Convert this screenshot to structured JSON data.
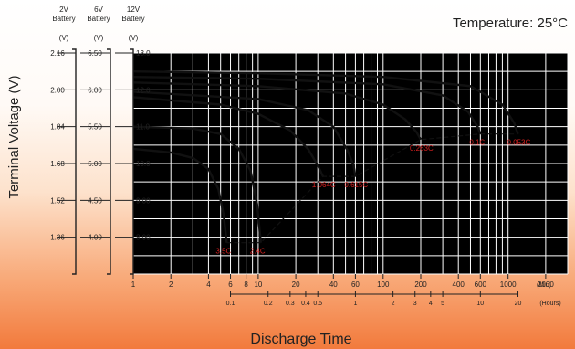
{
  "temperature_label": "Temperature: 25°C",
  "y_axis_title": "Terminal Voltage (V)",
  "x_axis_title": "Discharge Time",
  "battery_headers": [
    {
      "line1": "2V",
      "line2": "Battery",
      "unit": "(V)"
    },
    {
      "line1": "6V",
      "line2": "Battery",
      "unit": "(V)"
    },
    {
      "line1": "12V",
      "line2": "Battery",
      "unit": "(V)"
    }
  ],
  "y_ticks_2v": [
    "2.16",
    "2.00",
    "1.84",
    "1.68",
    "1.52",
    "1.36"
  ],
  "y_ticks_6v": [
    "6.50",
    "6.00",
    "5.50",
    "5.00",
    "4.50",
    "4.00"
  ],
  "colors": {
    "curve": "#111111",
    "label": "#d42020",
    "grid": "#ffffff",
    "plot_bg": "#000000"
  },
  "chart_data": {
    "type": "line",
    "x_scale": "log",
    "x_unit": "(Min)",
    "x_unit_hours": "(Hours)",
    "xlim_min": [
      1,
      3000
    ],
    "ylim": [
      7.0,
      13.0
    ],
    "y_ticks": [
      {
        "value": 13.0,
        "label": "13.0"
      },
      {
        "value": 12.0,
        "label": "12.0"
      },
      {
        "value": 11.0,
        "label": "11.0"
      },
      {
        "value": 10.0,
        "label": "10.0"
      },
      {
        "value": 9.0,
        "label": "9.00"
      },
      {
        "value": 8.0,
        "label": "8.00"
      }
    ],
    "x_ticks_min": [
      {
        "value": 1,
        "label": "1"
      },
      {
        "value": 2,
        "label": "2"
      },
      {
        "value": 4,
        "label": "4"
      },
      {
        "value": 6,
        "label": "6"
      },
      {
        "value": 8,
        "label": "8"
      },
      {
        "value": 10,
        "label": "10"
      },
      {
        "value": 20,
        "label": "20"
      },
      {
        "value": 40,
        "label": "40"
      },
      {
        "value": 60,
        "label": "60"
      },
      {
        "value": 100,
        "label": "100"
      },
      {
        "value": 200,
        "label": "200"
      },
      {
        "value": 400,
        "label": "400"
      },
      {
        "value": 600,
        "label": "600"
      },
      {
        "value": 1000,
        "label": "1000"
      },
      {
        "value": 2000,
        "label": "2000"
      }
    ],
    "x_ticks_hours": [
      {
        "value": 0.1,
        "label": "0.1"
      },
      {
        "value": 0.2,
        "label": "0.2"
      },
      {
        "value": 0.3,
        "label": "0.3"
      },
      {
        "value": 0.4,
        "label": "0.4"
      },
      {
        "value": 0.5,
        "label": "0.5"
      },
      {
        "value": 1,
        "label": "1"
      },
      {
        "value": 2,
        "label": "2"
      },
      {
        "value": 3,
        "label": "3"
      },
      {
        "value": 4,
        "label": "4"
      },
      {
        "value": 5,
        "label": "5"
      },
      {
        "value": 10,
        "label": "10"
      },
      {
        "value": 20,
        "label": "20"
      }
    ],
    "series": [
      {
        "name": "3.5C",
        "end_min": 5.6,
        "end_v": 7.85,
        "points": [
          [
            1,
            10.4
          ],
          [
            2,
            10.3
          ],
          [
            3,
            10.15
          ],
          [
            4,
            9.85
          ],
          [
            4.8,
            9.3
          ],
          [
            5.3,
            8.6
          ],
          [
            5.6,
            7.85
          ]
        ]
      },
      {
        "name": "2.4C",
        "end_min": 10.5,
        "end_v": 7.85,
        "points": [
          [
            1,
            11.0
          ],
          [
            3,
            10.95
          ],
          [
            5,
            10.8
          ],
          [
            7,
            10.4
          ],
          [
            8.7,
            9.8
          ],
          [
            9.8,
            8.9
          ],
          [
            10.5,
            7.85
          ]
        ]
      },
      {
        "name": "1.064C",
        "end_min": 33,
        "end_v": 9.65,
        "points": [
          [
            1,
            11.8
          ],
          [
            5,
            11.6
          ],
          [
            10,
            11.35
          ],
          [
            18,
            10.9
          ],
          [
            25,
            10.4
          ],
          [
            30,
            9.95
          ],
          [
            33,
            9.65
          ]
        ]
      },
      {
        "name": "0.615C",
        "end_min": 60,
        "end_v": 9.65,
        "points": [
          [
            1,
            11.95
          ],
          [
            10,
            11.75
          ],
          [
            25,
            11.45
          ],
          [
            40,
            11.0
          ],
          [
            52,
            10.35
          ],
          [
            58,
            9.95
          ],
          [
            60,
            9.65
          ]
        ]
      },
      {
        "name": "0.263C",
        "end_min": 200,
        "end_v": 10.65,
        "points": [
          [
            1,
            12.2
          ],
          [
            10,
            12.1
          ],
          [
            50,
            11.9
          ],
          [
            100,
            11.6
          ],
          [
            150,
            11.2
          ],
          [
            185,
            10.85
          ],
          [
            200,
            10.65
          ]
        ]
      },
      {
        "name": "0.1C",
        "end_min": 600,
        "end_v": 10.8,
        "points": [
          [
            1,
            12.35
          ],
          [
            10,
            12.3
          ],
          [
            100,
            12.15
          ],
          [
            300,
            11.85
          ],
          [
            480,
            11.4
          ],
          [
            570,
            11.0
          ],
          [
            600,
            10.8
          ]
        ]
      },
      {
        "name": "0.053C",
        "end_min": 1200,
        "end_v": 10.8,
        "points": [
          [
            1,
            12.5
          ],
          [
            10,
            12.45
          ],
          [
            100,
            12.35
          ],
          [
            500,
            12.1
          ],
          [
            900,
            11.6
          ],
          [
            1120,
            11.1
          ],
          [
            1200,
            10.8
          ]
        ]
      }
    ],
    "end_voltage_line": [
      [
        5.6,
        7.85
      ],
      [
        10.5,
        7.85
      ],
      [
        33,
        9.65
      ],
      [
        60,
        9.65
      ],
      [
        200,
        10.65
      ],
      [
        600,
        10.8
      ],
      [
        1200,
        10.8
      ]
    ]
  }
}
